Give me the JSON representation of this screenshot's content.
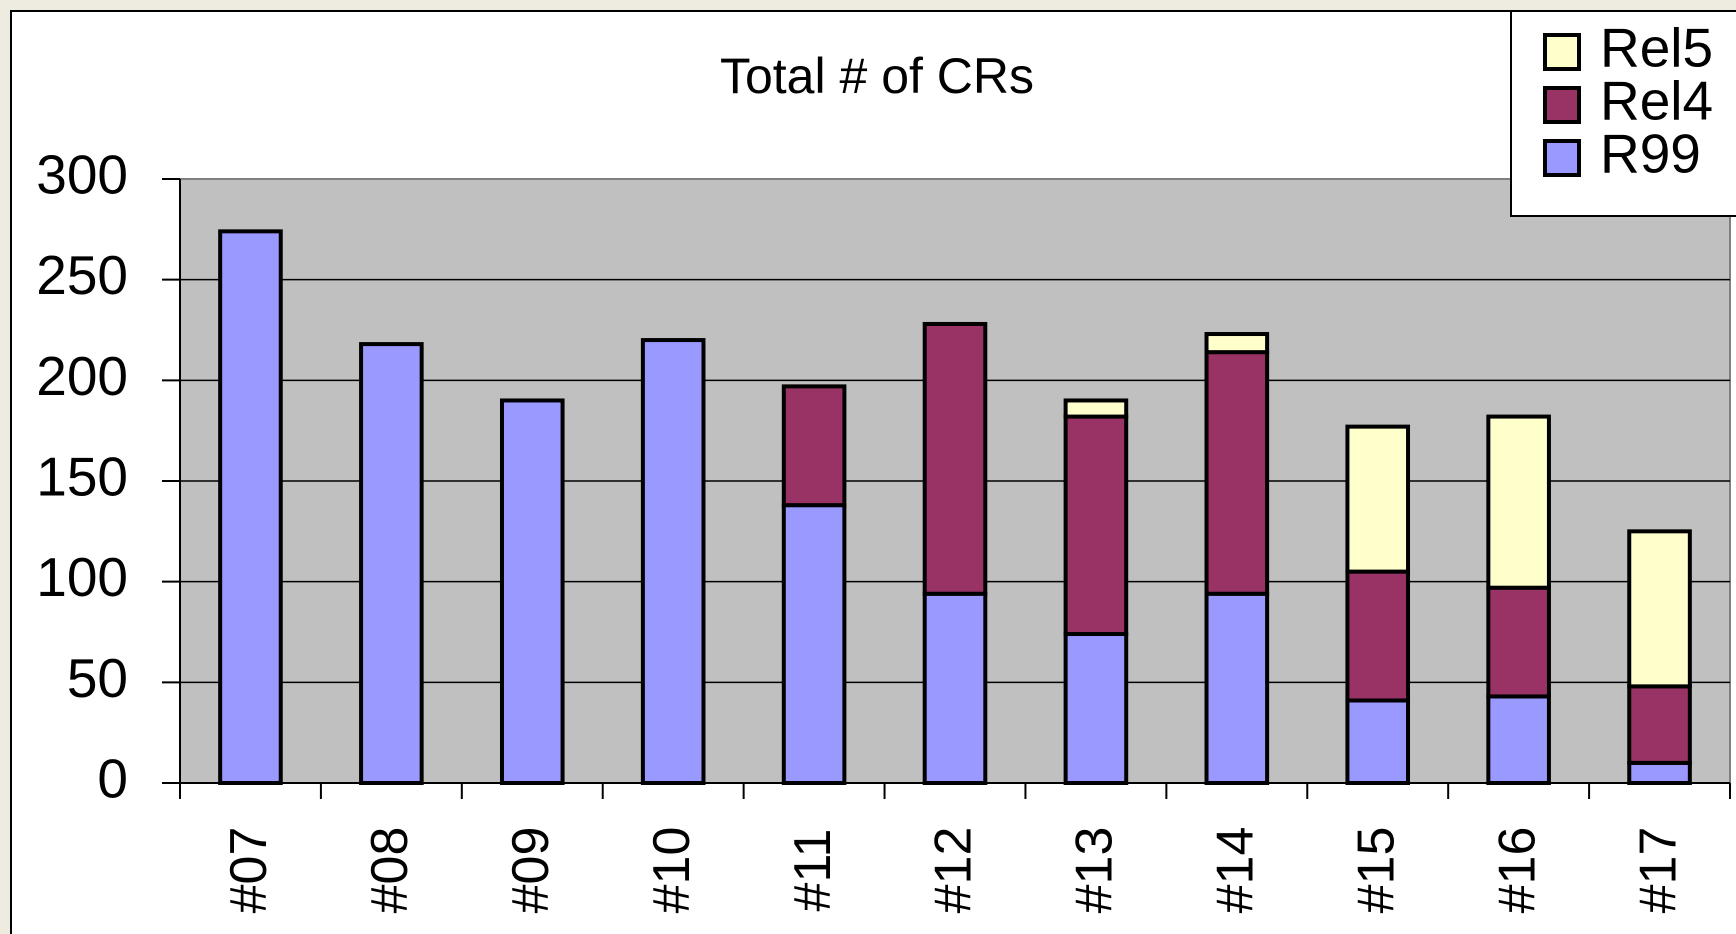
{
  "chart_data": {
    "type": "stacked-bar",
    "title": "Total # of CRs",
    "categories": [
      "#07",
      "#08",
      "#09",
      "#10",
      "#11",
      "#12",
      "#13",
      "#14",
      "#15",
      "#16",
      "#17"
    ],
    "series": [
      {
        "name": "R99",
        "color": "#9999ff",
        "values": [
          274,
          218,
          190,
          220,
          138,
          94,
          74,
          94,
          41,
          43,
          10
        ]
      },
      {
        "name": "Rel4",
        "color": "#993366",
        "values": [
          0,
          0,
          0,
          0,
          59,
          134,
          108,
          120,
          64,
          54,
          38
        ]
      },
      {
        "name": "Rel5",
        "color": "#ffffcc",
        "values": [
          0,
          0,
          0,
          0,
          0,
          0,
          8,
          9,
          72,
          85,
          77
        ]
      }
    ],
    "ylim": [
      0,
      300
    ],
    "yticks": [
      0,
      50,
      100,
      150,
      200,
      250,
      300
    ],
    "grid": true,
    "legend": "top-right"
  }
}
